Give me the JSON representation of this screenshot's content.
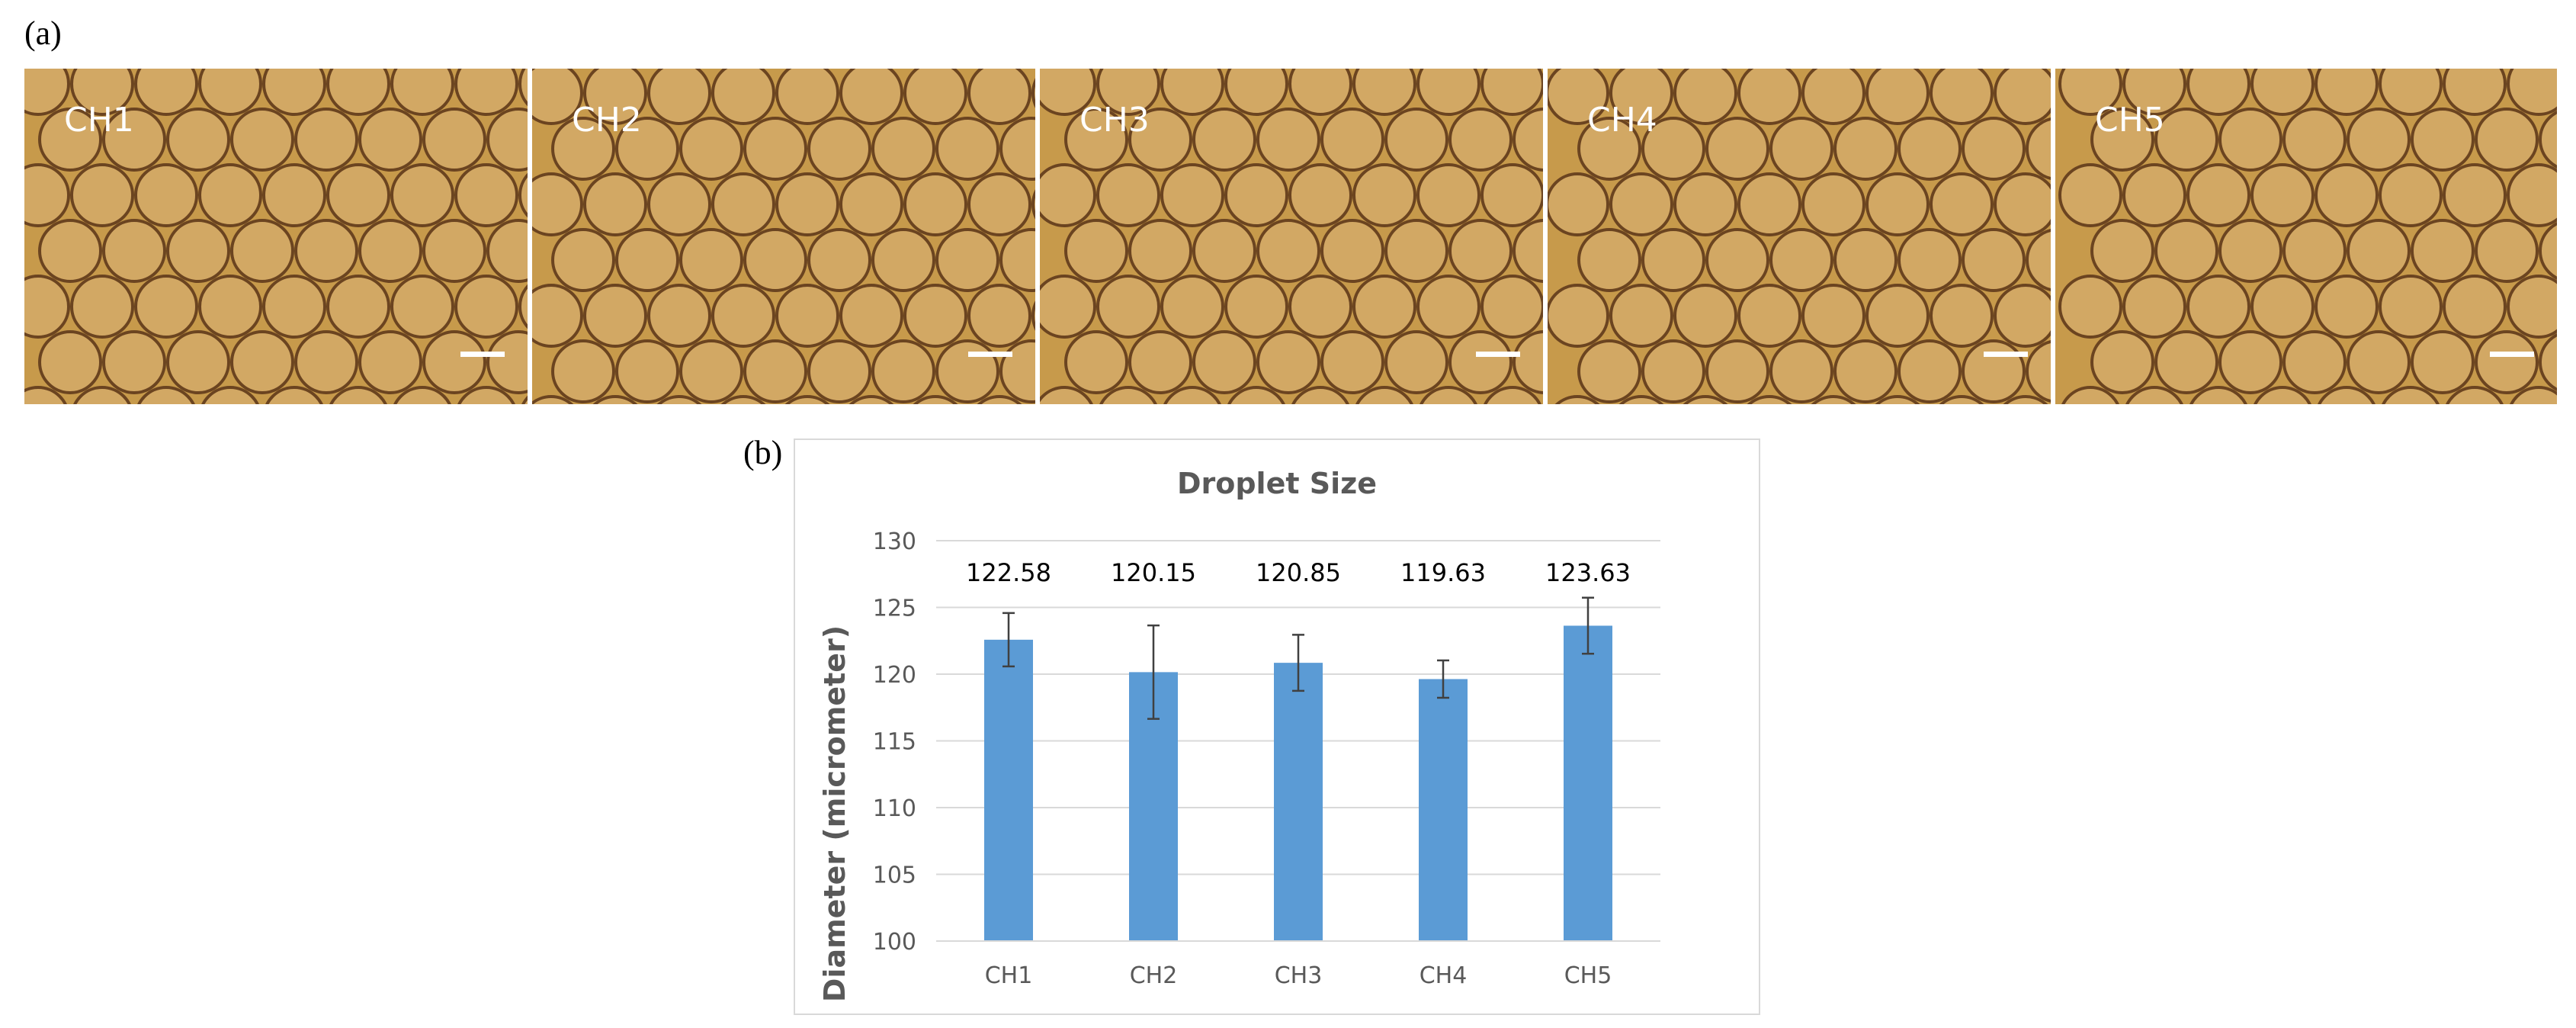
{
  "figure": {
    "panel_a_label": "(a)",
    "panel_b_label": "(b)"
  },
  "micrographs": [
    {
      "label": "CH1"
    },
    {
      "label": "CH2"
    },
    {
      "label": "CH3"
    },
    {
      "label": "CH4"
    },
    {
      "label": "CH5"
    }
  ],
  "colors": {
    "bar": "#5b9bd5",
    "grid": "#d9d9d9",
    "errorbar": "#404040",
    "micro_background": "#c79a4b",
    "droplet_edge": "#6b4420"
  },
  "chart_data": {
    "type": "bar",
    "title": "Droplet Size",
    "xlabel": "",
    "ylabel": "Diameter (micrometer)",
    "categories": [
      "CH1",
      "CH2",
      "CH3",
      "CH4",
      "CH5"
    ],
    "values": [
      122.58,
      120.15,
      120.85,
      119.63,
      123.63
    ],
    "data_labels": [
      "122.58",
      "120.15",
      "120.85",
      "119.63",
      "123.63"
    ],
    "error": [
      2.0,
      3.5,
      2.1,
      1.4,
      2.1
    ],
    "ylim": [
      100,
      130
    ],
    "yticks": [
      100,
      105,
      110,
      115,
      120,
      125,
      130
    ],
    "grid": true,
    "legend": "none"
  }
}
